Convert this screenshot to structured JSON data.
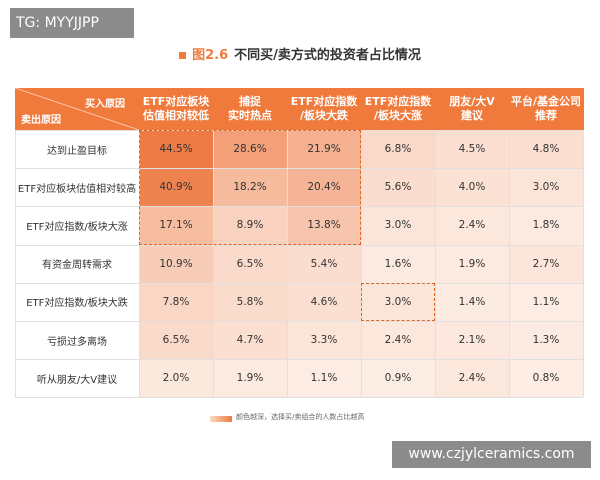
{
  "watermark_tag": "TG: MYYJJPP",
  "figure_number": "图2.6",
  "figure_title": "不同买/卖方式的投资者占比情况",
  "legend_text": "颜色越深，选择买/卖组合的人数占比越高",
  "watermark_url": "www.czjylceramics.com",
  "colors": {
    "header": "#f07a3c",
    "highlight_box": "#e0661f",
    "low": "#fdf1ea",
    "high": "#ee7b45"
  },
  "chart_data": {
    "type": "heatmap",
    "corner_column_label": "买入原因",
    "corner_row_label": "卖出原因",
    "columns": [
      "ETF对应板块\n估值相对较低",
      "捕捉\n实时热点",
      "ETF对应指数\n/板块大跌",
      "ETF对应指数\n/板块大涨",
      "朋友/大V\n建议",
      "平台/基金公司\n推荐"
    ],
    "rows": [
      "达到止盈目标",
      "ETF对应板块估值相对较高",
      "ETF对应指数/板块大涨",
      "有资金周转需求",
      "ETF对应指数/板块大跌",
      "亏损过多离场",
      "听从朋友/大V建议"
    ],
    "values": [
      [
        "44.5%",
        "28.6%",
        "21.9%",
        "6.8%",
        "4.5%",
        "4.8%"
      ],
      [
        "40.9%",
        "18.2%",
        "20.4%",
        "5.6%",
        "4.0%",
        "3.0%"
      ],
      [
        "17.1%",
        "8.9%",
        "13.8%",
        "3.0%",
        "2.4%",
        "1.8%"
      ],
      [
        "10.9%",
        "6.5%",
        "5.4%",
        "1.6%",
        "1.9%",
        "2.7%"
      ],
      [
        "7.8%",
        "5.8%",
        "4.6%",
        "3.0%",
        "1.4%",
        "1.1%"
      ],
      [
        "6.5%",
        "4.7%",
        "3.3%",
        "2.4%",
        "2.1%",
        "1.3%"
      ],
      [
        "2.0%",
        "1.9%",
        "1.1%",
        "0.9%",
        "2.4%",
        "0.8%"
      ]
    ],
    "highlighted_blocks": [
      {
        "rows": [
          0,
          2
        ],
        "columns": [
          0,
          2
        ]
      },
      {
        "rows": [
          4,
          4
        ],
        "columns": [
          3,
          3
        ]
      }
    ]
  }
}
